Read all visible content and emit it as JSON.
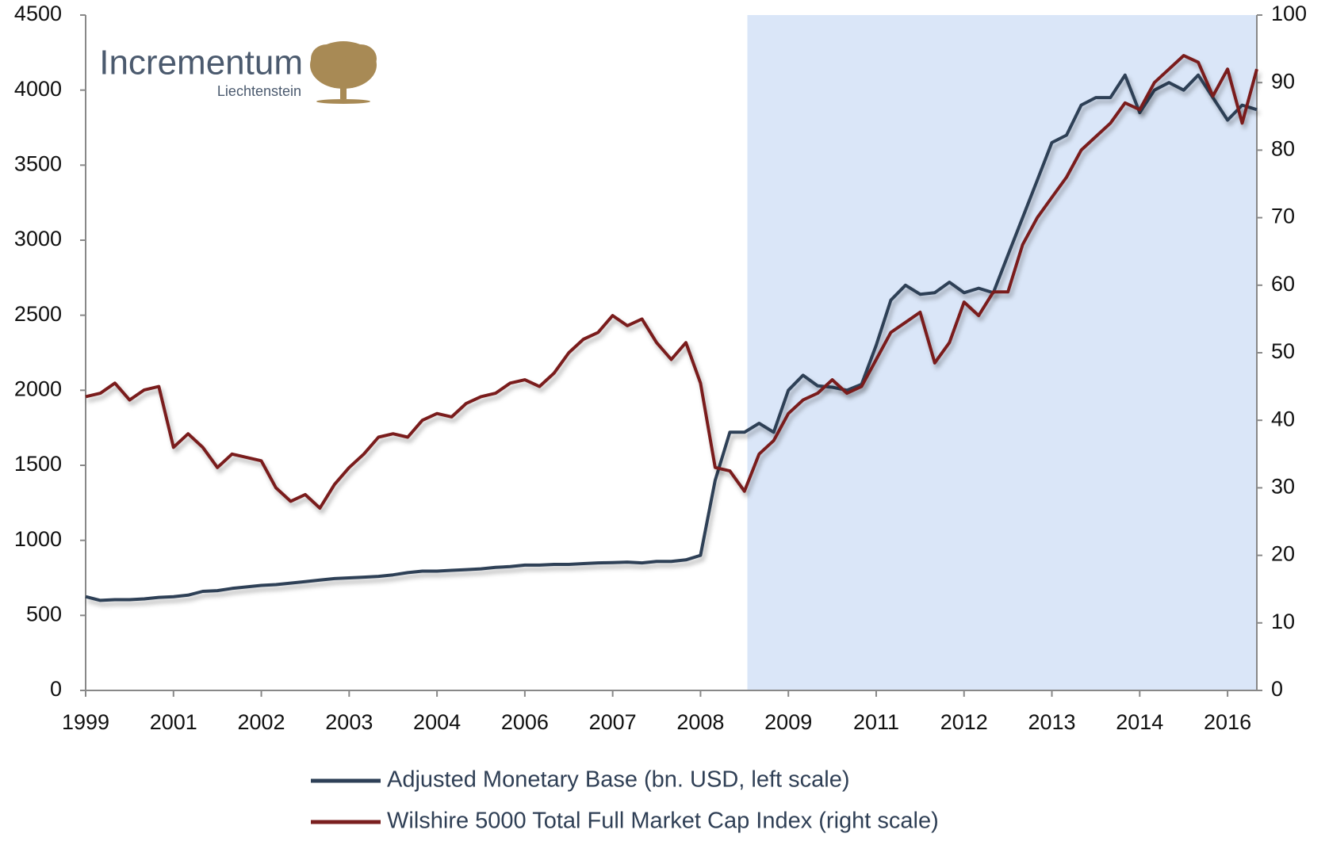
{
  "logo": {
    "title": "Incrementum",
    "subtitle": "Liechtenstein"
  },
  "chart_data": {
    "type": "line",
    "categories": [
      "1999",
      null,
      null,
      null,
      null,
      null,
      "2001",
      null,
      null,
      null,
      null,
      null,
      "2002",
      null,
      null,
      null,
      null,
      null,
      "2003",
      null,
      null,
      null,
      null,
      null,
      "2004",
      null,
      null,
      null,
      null,
      null,
      "2006",
      null,
      null,
      null,
      null,
      null,
      "2007",
      null,
      null,
      null,
      null,
      null,
      "2008",
      null,
      null,
      null,
      null,
      null,
      "2009",
      null,
      null,
      null,
      null,
      null,
      "2011",
      null,
      null,
      null,
      null,
      null,
      "2012",
      null,
      null,
      null,
      null,
      null,
      "2013",
      null,
      null,
      null,
      null,
      null,
      "2014",
      null,
      null,
      null,
      null,
      null,
      "2016",
      null,
      null
    ],
    "series": [
      {
        "name": "Adjusted Monetary Base (bn. USD, left scale)",
        "color": "#2e4057",
        "values": [
          625,
          600,
          605,
          605,
          610,
          620,
          625,
          635,
          660,
          665,
          680,
          690,
          700,
          705,
          715,
          725,
          735,
          745,
          750,
          755,
          760,
          770,
          785,
          795,
          795,
          800,
          805,
          810,
          820,
          825,
          835,
          835,
          840,
          840,
          845,
          850,
          852,
          855,
          850,
          860,
          860,
          870,
          900,
          1400,
          1720,
          1720,
          1780,
          1720,
          2000,
          2100,
          2030,
          2020,
          2000,
          2040,
          2300,
          2600,
          2700,
          2640,
          2650,
          2720,
          2650,
          2680,
          2650,
          2900,
          3150,
          3400,
          3650,
          3700,
          3900,
          3950,
          3950,
          4100,
          3850,
          4000,
          4050,
          4000,
          4100,
          3950,
          3800,
          3900,
          3870
        ]
      },
      {
        "name": "Wilshire 5000 Total Full Market Cap Index (right scale)",
        "color": "#7a1f1f",
        "axis": "y2",
        "values": [
          43.5,
          44,
          45.5,
          43,
          44.5,
          45,
          36,
          38,
          36,
          33,
          35,
          34.5,
          34,
          30,
          28,
          29,
          27,
          30.5,
          33,
          35,
          37.5,
          38,
          37.5,
          40,
          41,
          40.5,
          42.5,
          43.5,
          44,
          45.5,
          46,
          45,
          47,
          50,
          52,
          53,
          55.5,
          54,
          55,
          51.5,
          49,
          51.5,
          45.5,
          33,
          32.5,
          29.5,
          35,
          37,
          41,
          43,
          44,
          46,
          44,
          45,
          49,
          53,
          54.5,
          56,
          48.5,
          51.5,
          57.5,
          55.5,
          59,
          59,
          66,
          70,
          73,
          76,
          80,
          82,
          84,
          87,
          86,
          90,
          92,
          94,
          93,
          88,
          92,
          84,
          92
        ]
      }
    ],
    "ylim": [
      0,
      4500
    ],
    "yticks": [
      0,
      500,
      1000,
      1500,
      2000,
      2500,
      3000,
      3500,
      4000,
      4500
    ],
    "y2lim": [
      0,
      100
    ],
    "y2ticks": [
      0,
      10,
      20,
      30,
      40,
      50,
      60,
      70,
      80,
      90,
      100
    ]
  }
}
